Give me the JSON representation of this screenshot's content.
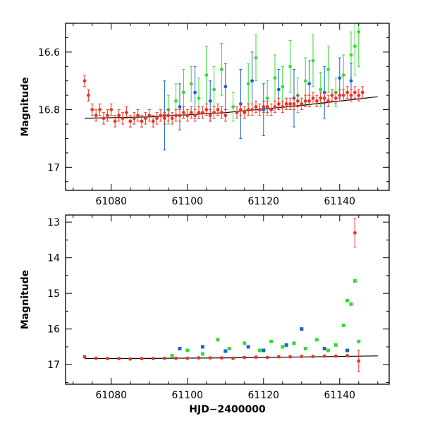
{
  "chart_data": [
    {
      "type": "scatter",
      "panel": "top",
      "xlim": [
        61068,
        61153
      ],
      "ylim": [
        17.08,
        16.5
      ],
      "y_inverted": true,
      "xticks": [
        61080,
        61100,
        61120,
        61140
      ],
      "xtick_labels": [
        "61080",
        "61100",
        "61120",
        "61140"
      ],
      "xtick_labels_shown": true,
      "yticks": [
        16.6,
        16.8,
        17.0
      ],
      "ytick_labels": [
        "16.6",
        "16.8",
        "17"
      ],
      "ylabel": "Magnitude",
      "xlabel": "",
      "model_curve": {
        "x": [
          61073,
          61090,
          61110,
          61130,
          61150
        ],
        "y": [
          16.83,
          16.825,
          16.81,
          16.785,
          16.755
        ],
        "color": "#000000"
      },
      "series": [
        {
          "name": "green",
          "color": "#33dd33",
          "x": [
            61095,
            61097,
            61099,
            61101,
            61103,
            61105,
            61107,
            61109,
            61112,
            61116,
            61118,
            61121,
            61123,
            61125,
            61127,
            61129,
            61131,
            61133,
            61135,
            61137,
            61139,
            61141,
            61143,
            61144,
            61145
          ],
          "y": [
            16.8,
            16.77,
            16.74,
            16.71,
            16.76,
            16.68,
            16.73,
            16.66,
            16.79,
            16.71,
            16.62,
            16.76,
            16.69,
            16.72,
            16.65,
            16.75,
            16.7,
            16.63,
            16.73,
            16.66,
            16.74,
            16.68,
            16.61,
            16.58,
            16.53
          ],
          "err": [
            0.05,
            0.06,
            0.08,
            0.06,
            0.07,
            0.1,
            0.08,
            0.09,
            0.05,
            0.07,
            0.08,
            0.06,
            0.08,
            0.07,
            0.09,
            0.06,
            0.08,
            0.09,
            0.06,
            0.08,
            0.05,
            0.07,
            0.08,
            0.1,
            0.12
          ]
        },
        {
          "name": "blue",
          "color": "#1f5fd6",
          "x": [
            61094,
            61098,
            61102,
            61106,
            61110,
            61114,
            61117,
            61120,
            61124,
            61128,
            61132,
            61136,
            61140,
            61143
          ],
          "y": [
            16.82,
            16.79,
            16.74,
            16.77,
            16.72,
            16.78,
            16.7,
            16.8,
            16.73,
            16.76,
            16.71,
            16.74,
            16.69,
            16.7
          ],
          "err": [
            0.12,
            0.08,
            0.09,
            0.07,
            0.08,
            0.12,
            0.1,
            0.09,
            0.07,
            0.1,
            0.08,
            0.09,
            0.07,
            0.06
          ]
        },
        {
          "name": "red",
          "color": "#ee3322",
          "x": [
            61073,
            61074,
            61075,
            61076,
            61077,
            61078,
            61079,
            61080,
            61081,
            61082,
            61083,
            61084,
            61085,
            61086,
            61087,
            61088,
            61089,
            61090,
            61091,
            61092,
            61093,
            61094,
            61095,
            61096,
            61097,
            61098,
            61099,
            61100,
            61101,
            61102,
            61103,
            61104,
            61105,
            61106,
            61107,
            61108,
            61109,
            61110,
            61113,
            61114,
            61115,
            61116,
            61117,
            61118,
            61119,
            61120,
            61121,
            61122,
            61123,
            61124,
            61125,
            61126,
            61127,
            61128,
            61129,
            61130,
            61131,
            61132,
            61133,
            61134,
            61135,
            61136,
            61137,
            61138,
            61139,
            61140,
            61141,
            61142,
            61143,
            61144,
            61145,
            61146
          ],
          "y": [
            16.7,
            16.75,
            16.8,
            16.82,
            16.8,
            16.83,
            16.82,
            16.8,
            16.84,
            16.82,
            16.83,
            16.81,
            16.84,
            16.83,
            16.82,
            16.84,
            16.83,
            16.82,
            16.84,
            16.83,
            16.82,
            16.83,
            16.82,
            16.83,
            16.82,
            16.82,
            16.81,
            16.82,
            16.81,
            16.82,
            16.81,
            16.81,
            16.8,
            16.82,
            16.81,
            16.8,
            16.81,
            16.82,
            16.81,
            16.8,
            16.81,
            16.8,
            16.8,
            16.79,
            16.8,
            16.79,
            16.79,
            16.8,
            16.79,
            16.78,
            16.79,
            16.78,
            16.78,
            16.78,
            16.77,
            16.78,
            16.77,
            16.77,
            16.76,
            16.77,
            16.76,
            16.76,
            16.77,
            16.75,
            16.76,
            16.75,
            16.75,
            16.74,
            16.75,
            16.74,
            16.75,
            16.74
          ],
          "err": [
            0.02,
            0.02,
            0.02,
            0.02,
            0.02,
            0.02,
            0.02,
            0.02,
            0.02,
            0.02,
            0.02,
            0.02,
            0.02,
            0.02,
            0.02,
            0.02,
            0.02,
            0.02,
            0.02,
            0.02,
            0.02,
            0.02,
            0.02,
            0.02,
            0.02,
            0.02,
            0.02,
            0.02,
            0.02,
            0.02,
            0.02,
            0.02,
            0.02,
            0.02,
            0.02,
            0.02,
            0.02,
            0.02,
            0.02,
            0.02,
            0.02,
            0.02,
            0.02,
            0.02,
            0.02,
            0.02,
            0.02,
            0.02,
            0.02,
            0.02,
            0.02,
            0.02,
            0.02,
            0.02,
            0.02,
            0.02,
            0.02,
            0.02,
            0.02,
            0.02,
            0.02,
            0.02,
            0.02,
            0.02,
            0.02,
            0.02,
            0.02,
            0.02,
            0.02,
            0.02,
            0.02,
            0.02
          ]
        }
      ]
    },
    {
      "type": "scatter",
      "panel": "bottom",
      "xlim": [
        61068,
        61153
      ],
      "ylim": [
        17.55,
        12.8
      ],
      "y_inverted": true,
      "xticks": [
        61080,
        61100,
        61120,
        61140
      ],
      "xtick_labels": [
        "61080",
        "61100",
        "61120",
        "61140"
      ],
      "xtick_labels_shown": true,
      "yticks": [
        13,
        14,
        15,
        16,
        17
      ],
      "ytick_labels": [
        "13",
        "14",
        "15",
        "16",
        "17"
      ],
      "ylabel": "Magnitude",
      "xlabel": "HJD−2400000",
      "model_curve": {
        "x": [
          61073,
          61090,
          61110,
          61130,
          61150
        ],
        "y": [
          16.83,
          16.825,
          16.81,
          16.785,
          16.755
        ],
        "color": "#000000"
      },
      "series": [
        {
          "name": "green",
          "color": "#33dd33",
          "x": [
            61096,
            61100,
            61104,
            61108,
            61111,
            61115,
            61119,
            61122,
            61125,
            61128,
            61131,
            61134,
            61137,
            61139,
            61141,
            61142,
            61143,
            61144,
            61145
          ],
          "y": [
            16.75,
            16.6,
            16.7,
            16.3,
            16.55,
            16.4,
            16.6,
            16.35,
            16.5,
            16.4,
            16.55,
            16.3,
            16.6,
            16.45,
            15.9,
            15.2,
            15.3,
            14.65,
            16.35
          ],
          "err": []
        },
        {
          "name": "blue",
          "color": "#1f5fd6",
          "x": [
            61098,
            61104,
            61110,
            61116,
            61120,
            61126,
            61130,
            61136,
            61142
          ],
          "y": [
            16.55,
            16.5,
            16.62,
            16.5,
            16.6,
            16.45,
            16.0,
            16.55,
            16.6
          ],
          "err": []
        },
        {
          "name": "red",
          "color": "#ee3322",
          "x": [
            61073,
            61076,
            61079,
            61082,
            61085,
            61088,
            61091,
            61094,
            61097,
            61100,
            61103,
            61106,
            61109,
            61112,
            61115,
            61118,
            61121,
            61124,
            61127,
            61130,
            61133,
            61136,
            61139,
            61142,
            61144,
            61145
          ],
          "y": [
            16.78,
            16.82,
            16.83,
            16.83,
            16.84,
            16.83,
            16.83,
            16.82,
            16.82,
            16.82,
            16.81,
            16.81,
            16.81,
            16.82,
            16.8,
            16.79,
            16.8,
            16.78,
            16.78,
            16.77,
            16.77,
            16.76,
            16.76,
            16.75,
            13.3,
            16.9
          ],
          "err": [
            0.03,
            0.03,
            0.03,
            0.03,
            0.03,
            0.03,
            0.03,
            0.03,
            0.03,
            0.03,
            0.03,
            0.03,
            0.03,
            0.03,
            0.03,
            0.03,
            0.03,
            0.03,
            0.03,
            0.03,
            0.03,
            0.03,
            0.03,
            0.03,
            0.4,
            0.3
          ]
        }
      ]
    }
  ]
}
